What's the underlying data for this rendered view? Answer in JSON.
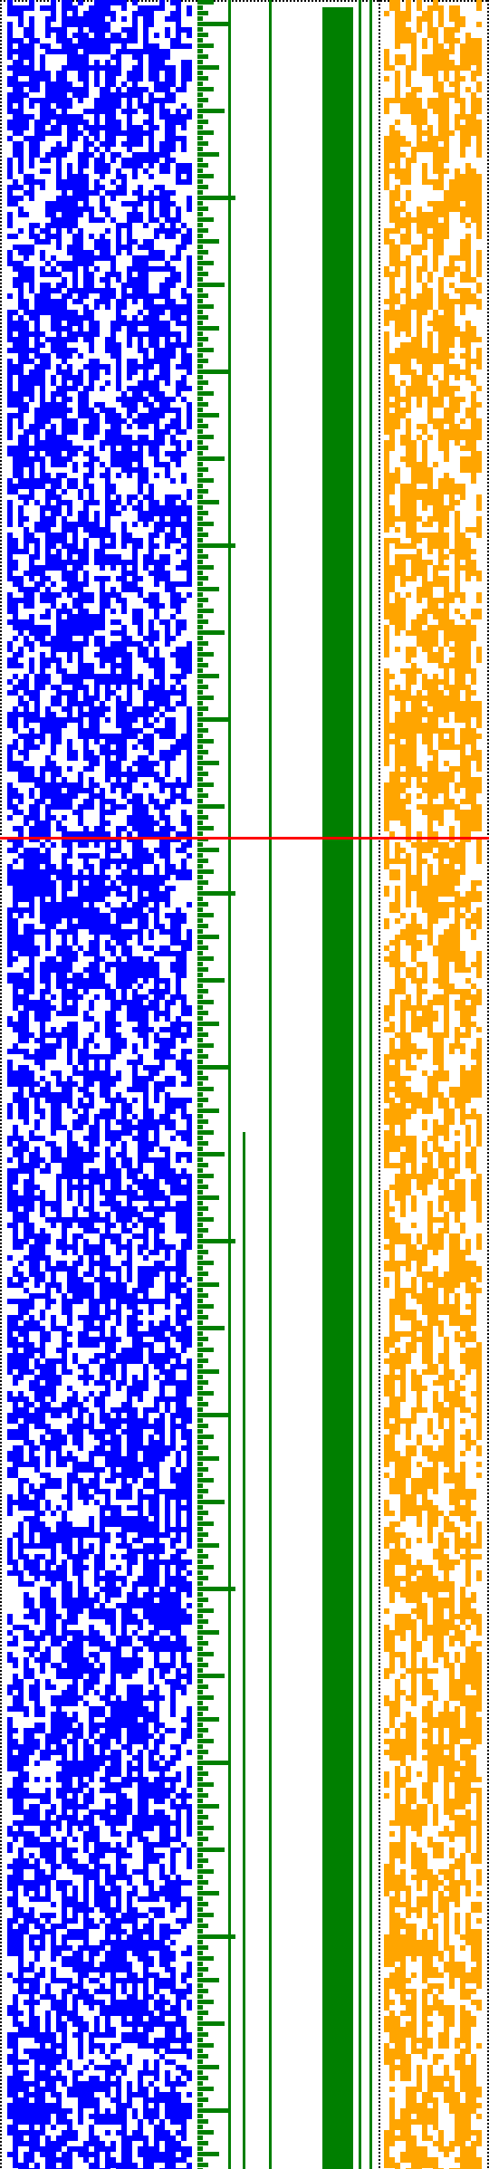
{
  "title": "",
  "colors": {
    "background": "#ffffff",
    "dotted_border": "#000000",
    "blue_pattern": "#0000ff",
    "green_staircase": "#007f00",
    "green_band": "#007f00",
    "orange_pattern": "#ffa500",
    "marker_line": "#ff0000"
  },
  "panels": [
    {
      "name": "blue-bit-field",
      "color_key": "blue_pattern",
      "fill_density": 0.55
    },
    {
      "name": "green-counter-staircase",
      "color_key": "green_staircase"
    },
    {
      "name": "green-solid-band",
      "color_key": "green_band"
    },
    {
      "name": "orange-bit-field",
      "color_key": "orange_pattern",
      "fill_density": 0.5
    }
  ],
  "marker": {
    "name": "red-horizontal-marker",
    "color_key": "marker_line",
    "position_fraction": 0.386
  }
}
